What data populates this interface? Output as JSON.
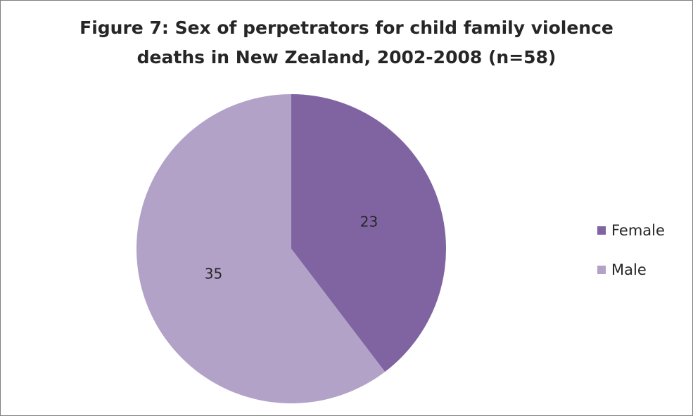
{
  "chart_data": {
    "type": "pie",
    "title": [
      "Figure 7: Sex  of perpetrators  for child family violence",
      "deaths in New Zealand, 2002-2008 (n=58)"
    ],
    "slices": [
      {
        "label": "Female",
        "value": 23,
        "color": "#8064a2"
      },
      {
        "label": "Male",
        "value": 35,
        "color": "#b3a2c7"
      }
    ],
    "data_labels": [
      "23",
      "35"
    ],
    "legend": {
      "placement": "right",
      "entries": [
        "Female",
        "Male"
      ]
    }
  }
}
